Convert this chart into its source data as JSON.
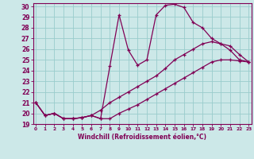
{
  "xlabel": "Windchill (Refroidissement éolien,°C)",
  "bg_color": "#cce8e8",
  "grid_color": "#99cccc",
  "line_color": "#800055",
  "x_min": 0,
  "x_max": 23,
  "y_min": 19,
  "y_max": 30,
  "series": [
    [
      21.0,
      19.8,
      20.0,
      19.5,
      19.5,
      19.6,
      19.8,
      19.5,
      24.4,
      29.2,
      25.9,
      24.5,
      25.0,
      29.2,
      30.1,
      30.2,
      29.9,
      28.5,
      28.0,
      27.0,
      26.5,
      25.9,
      25.0,
      24.8
    ],
    [
      21.0,
      19.8,
      20.0,
      19.5,
      19.5,
      19.6,
      19.8,
      20.3,
      21.0,
      21.5,
      22.0,
      22.5,
      23.0,
      23.5,
      24.2,
      25.0,
      25.5,
      26.0,
      26.5,
      26.7,
      26.5,
      26.3,
      25.5,
      24.8
    ],
    [
      21.0,
      19.8,
      20.0,
      19.5,
      19.5,
      19.6,
      19.8,
      19.5,
      19.5,
      20.0,
      20.4,
      20.8,
      21.3,
      21.8,
      22.3,
      22.8,
      23.3,
      23.8,
      24.3,
      24.8,
      25.0,
      25.0,
      24.9,
      24.8
    ]
  ]
}
